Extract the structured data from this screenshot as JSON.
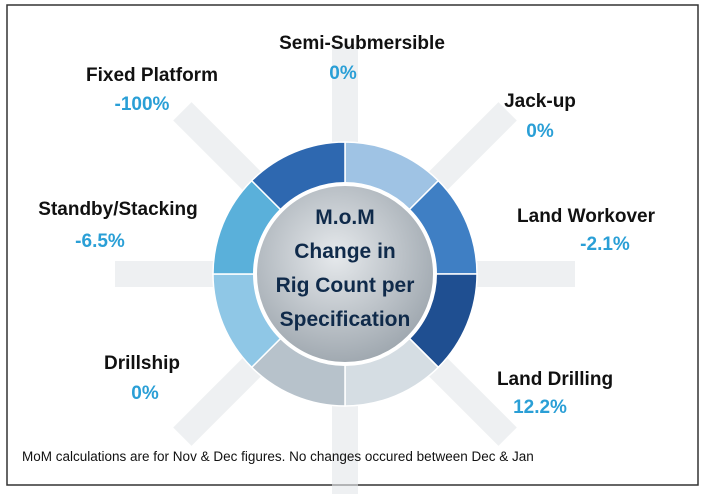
{
  "center_title": [
    "M.o.M",
    "Change in",
    "Rig Count per",
    "Specification"
  ],
  "segments": [
    {
      "label": "Semi-Submersible",
      "value": "0%"
    },
    {
      "label": "Fixed Platform",
      "value": "-100%"
    },
    {
      "label": "Jack-up",
      "value": "0%"
    },
    {
      "label": "Standby/Stacking",
      "value": "-6.5%"
    },
    {
      "label": "Land Workover",
      "value": "-2.1%"
    },
    {
      "label": "Drillship",
      "value": "0%"
    },
    {
      "label": "Land Drilling",
      "value": "12.2%"
    }
  ],
  "footnote": "MoM calculations are for Nov & Dec figures. No changes occured between Dec & Jan"
}
